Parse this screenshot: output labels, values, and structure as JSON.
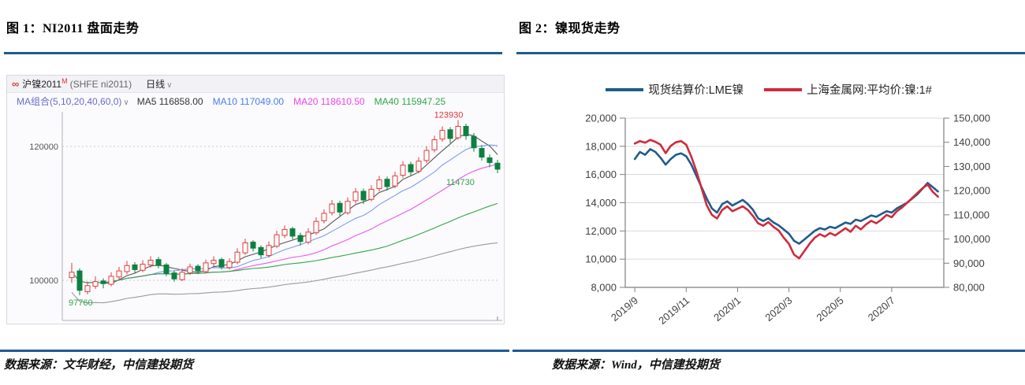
{
  "figure1": {
    "title": "图 1：NI2011 盘面走势",
    "source": "数据来源：文华财经，中信建投期货",
    "terminal": {
      "logo": "∞",
      "symbol": "沪镍2011",
      "symbol_sup": "M",
      "symbol_code": "(SHFE ni2011)",
      "period": "日线",
      "ma_label": "MA组合(5,10,20,40,60,0)",
      "ma_values": [
        {
          "label": "MA5 116858.00",
          "color": "#333333"
        },
        {
          "label": "MA10 117049.00",
          "color": "#4a7cf0"
        },
        {
          "label": "MA20 118610.50",
          "color": "#ee44ee"
        },
        {
          "label": "MA40 115947.25",
          "color": "#2fa64b"
        }
      ]
    },
    "chart_data": {
      "type": "candlestick",
      "title": "NI2011 盘面走势",
      "y_axis_labels": [
        {
          "value": 120000,
          "label": "120000"
        },
        {
          "value": 100000,
          "label": "100000"
        }
      ],
      "high_annotation": {
        "value": 123930,
        "label": "123930"
      },
      "ma_tag_annotation": {
        "value": 114730,
        "label": "114730"
      },
      "low_annotation": {
        "value": 97760,
        "label": "97760"
      },
      "up_color": "#e23b3b",
      "down_color": "#0c8040",
      "ma_windows": [
        5,
        10,
        20,
        40,
        60
      ],
      "ma_colors": [
        "#555555",
        "#7a9cf0",
        "#ee55ee",
        "#2fa64b",
        "#9a9a9a"
      ],
      "open": [
        100400,
        101400,
        98300,
        99100,
        99900,
        99400,
        100500,
        101300,
        102300,
        101500,
        102300,
        103100,
        102300,
        101100,
        100100,
        101100,
        102100,
        101300,
        102500,
        103100,
        101900,
        102700,
        104100,
        105700,
        104900,
        103700,
        105100,
        106700,
        107700,
        106700,
        105700,
        107100,
        108900,
        110100,
        111500,
        110100,
        111900,
        113300,
        112100,
        113700,
        115100,
        114100,
        115700,
        117300,
        116300,
        117900,
        119500,
        121100,
        122500,
        121300,
        123000,
        121500,
        119700,
        118300,
        117500
      ],
      "high": [
        102600,
        101800,
        99800,
        100600,
        100300,
        101200,
        102000,
        102900,
        102700,
        103000,
        103600,
        103500,
        102600,
        101500,
        101800,
        102500,
        102400,
        103100,
        103600,
        103400,
        103300,
        104800,
        106200,
        106000,
        105200,
        105800,
        107400,
        108200,
        108000,
        107100,
        107800,
        109400,
        110600,
        112000,
        111900,
        112400,
        113800,
        113700,
        114200,
        115600,
        115500,
        116200,
        117800,
        117700,
        118400,
        120000,
        121600,
        123000,
        122900,
        123930,
        123400,
        122000,
        120200,
        118800,
        118000
      ],
      "low": [
        99600,
        97760,
        97900,
        98700,
        98800,
        99100,
        100100,
        100900,
        101100,
        101200,
        101900,
        101800,
        100600,
        99800,
        99900,
        100800,
        101000,
        101000,
        102100,
        101600,
        101600,
        102400,
        103800,
        104300,
        103300,
        103400,
        104800,
        106300,
        106100,
        105200,
        105400,
        106800,
        108500,
        109700,
        109600,
        109800,
        111500,
        111400,
        111800,
        113300,
        113400,
        113800,
        115300,
        115600,
        116000,
        117500,
        119100,
        120700,
        120500,
        121000,
        121000,
        119200,
        117900,
        116900,
        116000
      ],
      "close": [
        101200,
        98500,
        99200,
        99800,
        99500,
        100600,
        101400,
        102200,
        101600,
        102400,
        103000,
        102200,
        101000,
        100200,
        101200,
        102000,
        101400,
        102600,
        103000,
        102000,
        102800,
        104200,
        105600,
        104800,
        103800,
        105200,
        106800,
        107600,
        106600,
        105800,
        107200,
        108800,
        110000,
        111400,
        110200,
        111800,
        113200,
        112000,
        113600,
        115000,
        114000,
        115600,
        117200,
        116200,
        117800,
        119400,
        121000,
        122400,
        121200,
        123000,
        121600,
        119800,
        118400,
        117600,
        116600
      ]
    }
  },
  "figure2": {
    "title": "图 2：镍现货走势",
    "source": "数据来源：Wind，中信建投期货",
    "chart_data": {
      "type": "line",
      "legend_position": "top",
      "x_tick_labels": [
        "2019/9",
        "2019/11",
        "2020/1",
        "2020/3",
        "2020/5",
        "2020/7"
      ],
      "x_tick_months": [
        0,
        2,
        4,
        6,
        8,
        10
      ],
      "x_range_months": [
        0,
        12.4
      ],
      "left_axis": {
        "min": 8000,
        "max": 20000,
        "step": 2000,
        "tick_labels": [
          "20,000",
          "18,000",
          "16,000",
          "14,000",
          "12,000",
          "10,000",
          "8,000"
        ]
      },
      "right_axis": {
        "min": 80000,
        "max": 150000,
        "step": 10000,
        "tick_labels": [
          "150,000",
          "140,000",
          "130,000",
          "120,000",
          "110,000",
          "100,000",
          "90,000",
          "80,000"
        ]
      },
      "x": [
        0,
        0.2,
        0.4,
        0.6,
        0.8,
        1,
        1.2,
        1.4,
        1.6,
        1.8,
        2,
        2.2,
        2.4,
        2.6,
        2.8,
        3,
        3.2,
        3.4,
        3.6,
        3.8,
        4,
        4.2,
        4.4,
        4.6,
        4.8,
        5,
        5.2,
        5.4,
        5.6,
        5.8,
        6,
        6.2,
        6.4,
        6.6,
        6.8,
        7,
        7.2,
        7.4,
        7.6,
        7.8,
        8,
        8.2,
        8.4,
        8.6,
        8.8,
        9,
        9.2,
        9.4,
        9.6,
        9.8,
        10,
        10.2,
        10.4,
        10.6,
        10.8,
        11,
        11.2,
        11.4,
        11.6,
        11.8
      ],
      "series": [
        {
          "name": "现货结算价:LME镍",
          "axis": "left",
          "color": "#1f5c8b",
          "values": [
            17100,
            17600,
            17400,
            17800,
            17600,
            17200,
            16700,
            17100,
            17400,
            17500,
            17300,
            16700,
            15900,
            15100,
            14300,
            13600,
            13300,
            13900,
            14100,
            13800,
            14000,
            14200,
            13900,
            13500,
            12900,
            12700,
            12900,
            12600,
            12400,
            12100,
            11800,
            11300,
            11100,
            11400,
            11700,
            12000,
            12200,
            12100,
            12300,
            12200,
            12400,
            12600,
            12500,
            12800,
            12700,
            12900,
            13100,
            13000,
            13200,
            13400,
            13300,
            13600,
            13800,
            14000,
            14300,
            14600,
            15000,
            15400,
            15100,
            14800
          ]
        },
        {
          "name": "上海金属网:平均价:镍:1#",
          "axis": "right",
          "color": "#cf2a3c",
          "values": [
            139500,
            140500,
            139800,
            141000,
            140200,
            139000,
            135500,
            138500,
            140000,
            140500,
            139000,
            134000,
            128000,
            121000,
            114000,
            110000,
            108500,
            112000,
            113500,
            111500,
            112500,
            113500,
            112000,
            109500,
            106500,
            105500,
            107000,
            105000,
            103500,
            100500,
            98000,
            93500,
            92000,
            95000,
            98000,
            100500,
            102000,
            101000,
            102500,
            101500,
            103000,
            104500,
            103000,
            105500,
            104000,
            106000,
            107500,
            106500,
            108000,
            110000,
            109000,
            111500,
            113000,
            115000,
            117000,
            119000,
            121000,
            122500,
            119500,
            117500
          ]
        }
      ]
    }
  }
}
